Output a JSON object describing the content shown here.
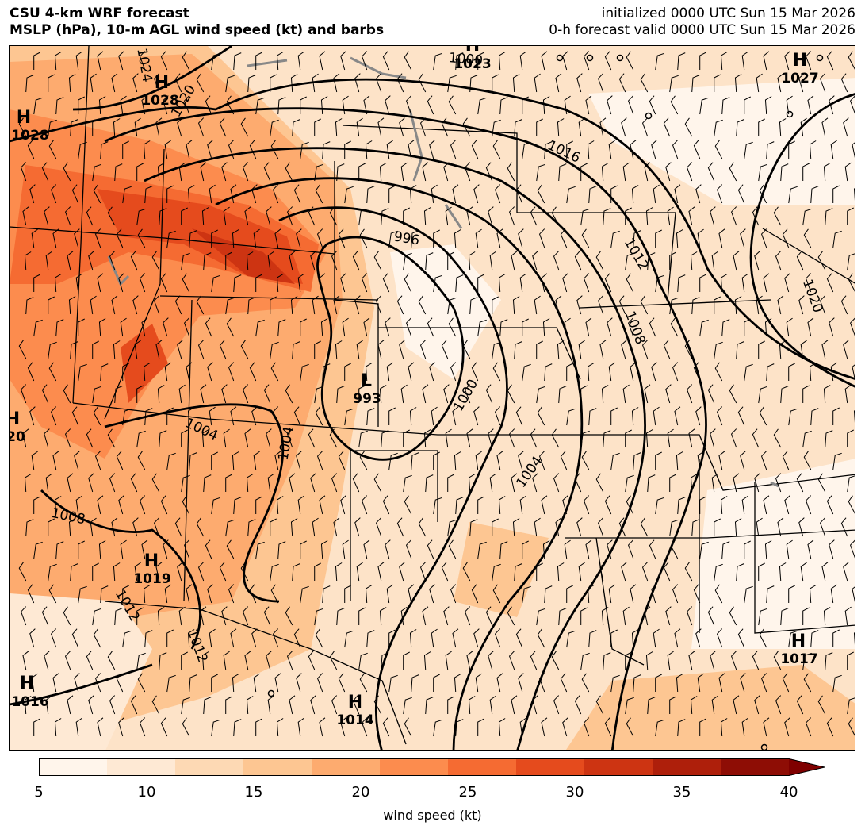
{
  "header": {
    "title_line1": "CSU 4-km WRF forecast",
    "title_line2": "MSLP (hPa), 10-m AGL wind speed (kt) and barbs",
    "init_line": "initialized 0000 UTC Sun 15 Mar 2026",
    "valid_line": "0-h forecast valid 0000 UTC Sun 15 Mar 2026"
  },
  "map": {
    "pressure_centers": [
      {
        "type": "H",
        "value": "1028"
      },
      {
        "type": "H",
        "value": "1028"
      },
      {
        "type": "H",
        "value": "1023"
      },
      {
        "type": "H",
        "value": "1027"
      },
      {
        "type": "L",
        "value": "993"
      },
      {
        "type": "H",
        "value": "1019"
      },
      {
        "type": "H",
        "value": "1017"
      },
      {
        "type": "H",
        "value": "1014"
      },
      {
        "type": "H",
        "value": "1016"
      },
      {
        "type": "H",
        "value": "20"
      }
    ],
    "isobar_labels": [
      "1024",
      "1020",
      "1016",
      "1012",
      "1020",
      "996",
      "1008",
      "1000",
      "1004",
      "1004",
      "1004",
      "1008",
      "1012",
      "1012",
      "1000"
    ]
  },
  "colorbar": {
    "ticks": [
      "5",
      "10",
      "15",
      "20",
      "25",
      "30",
      "35",
      "40"
    ],
    "label": "wind speed (kt)",
    "colors": [
      "#fff5eb",
      "#fee9d4",
      "#fdd9b4",
      "#fdc692",
      "#fdab6f",
      "#fc8c4e",
      "#f56b32",
      "#e54b1d",
      "#cd3412",
      "#ae1f0b",
      "#8e0d05",
      "#7f0000"
    ]
  }
}
